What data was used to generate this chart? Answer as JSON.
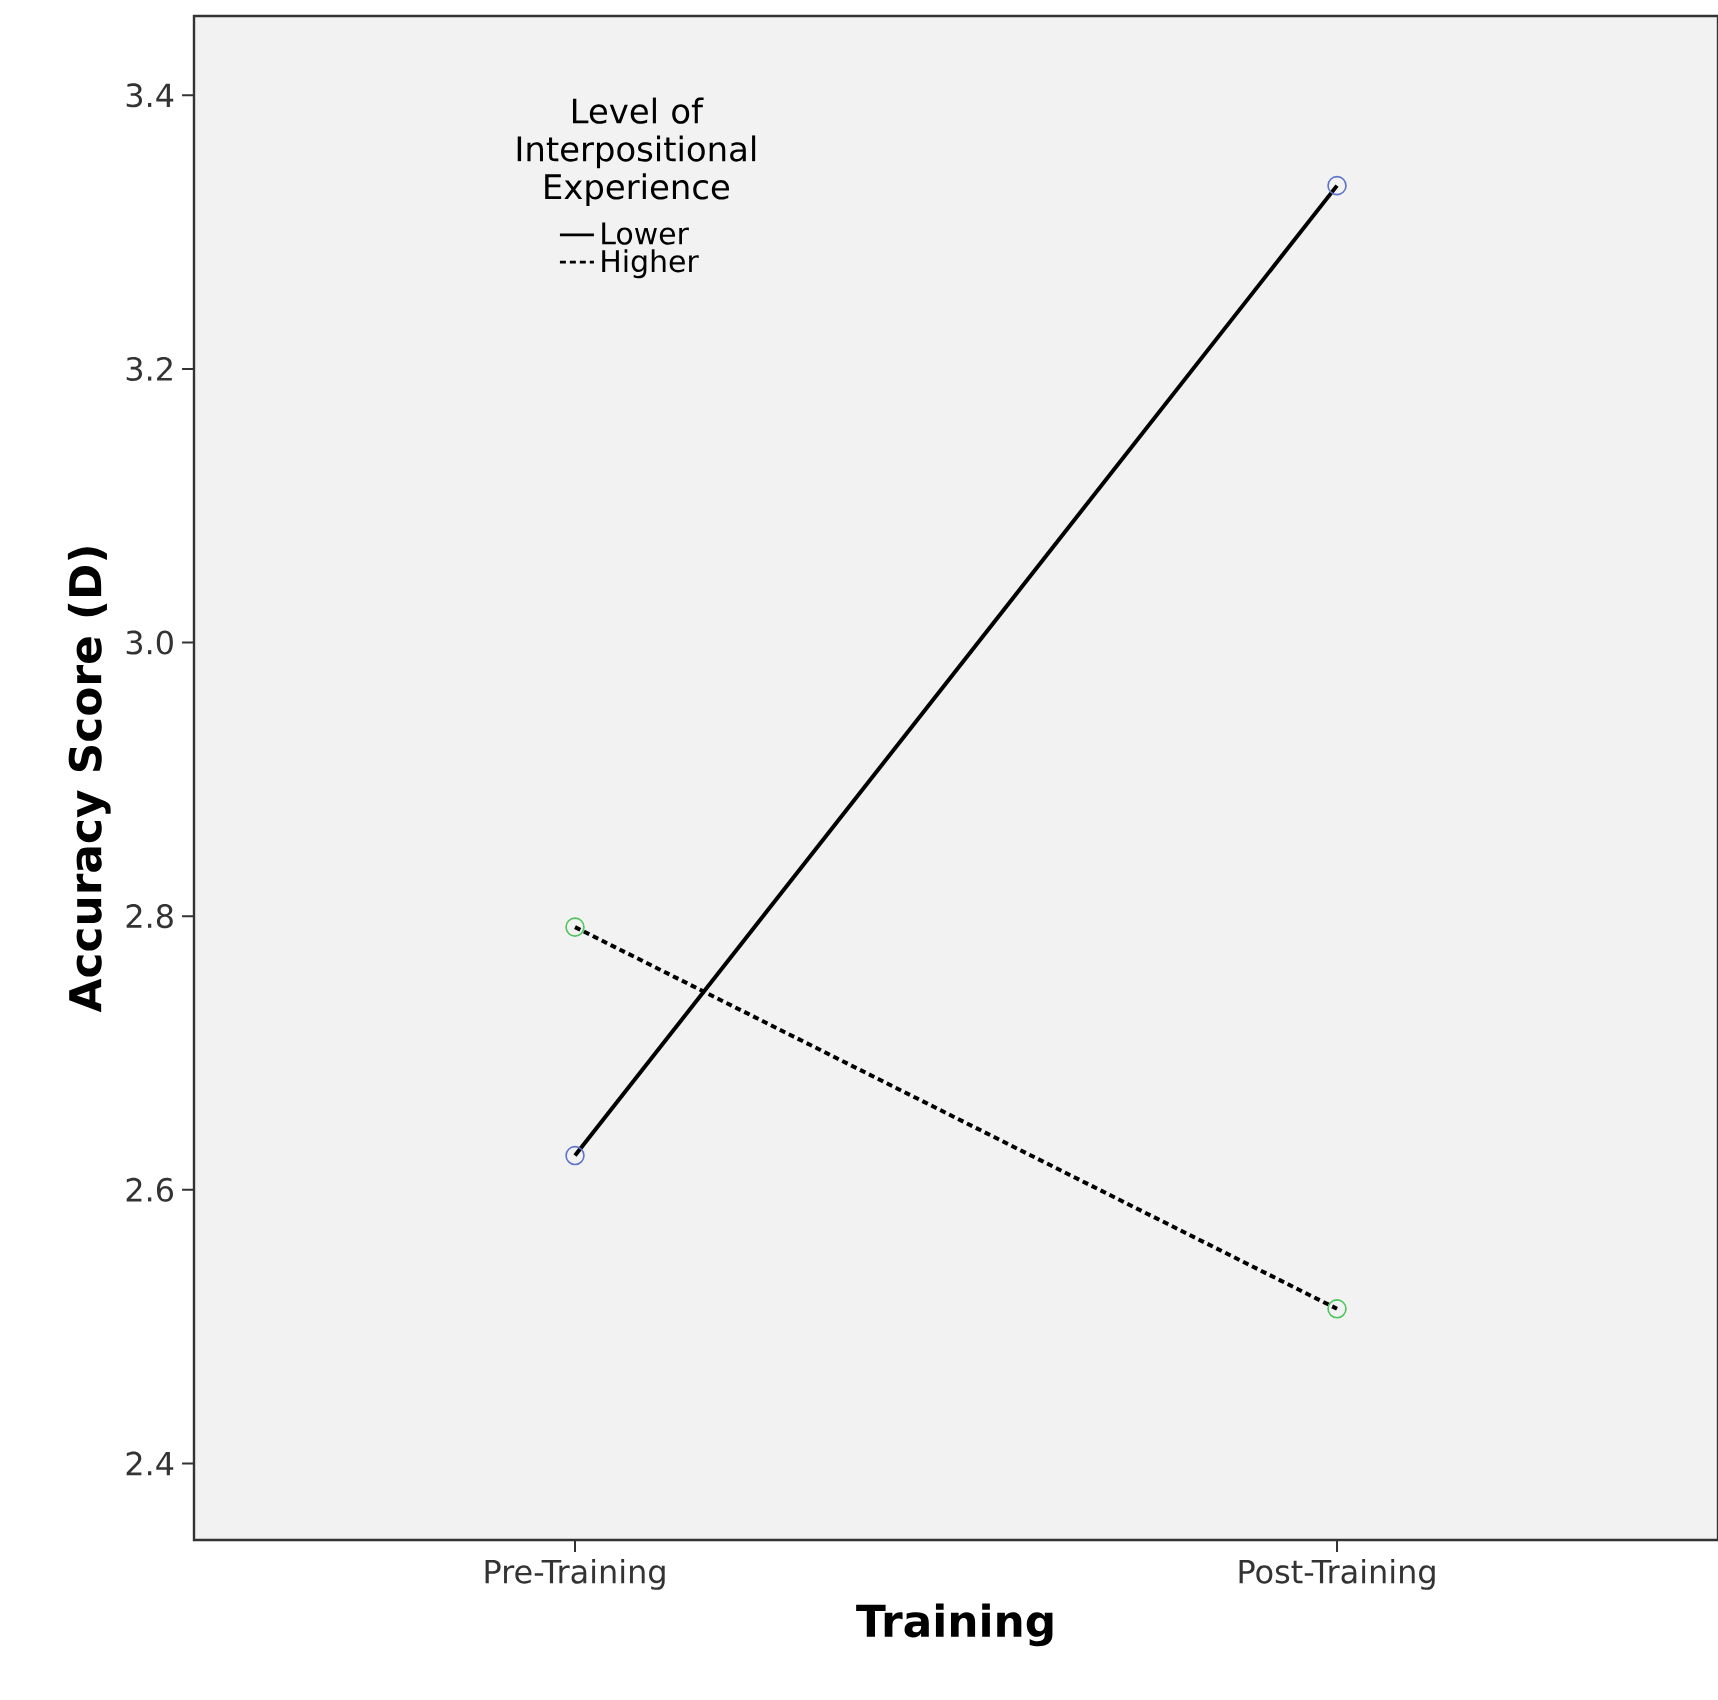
{
  "chart_data": {
    "type": "line",
    "xlabel": "Training",
    "ylabel": "Accuracy Score (D)",
    "legend_title": "Level of Interpositional Experience",
    "categories": [
      "Pre-Training",
      "Post-Training"
    ],
    "series": [
      {
        "name": "Lower",
        "color": "#000000",
        "colors": [
          "#5b73c9",
          "#5b73c9"
        ],
        "values": [
          2.625,
          3.334
        ],
        "line_style": "solid"
      },
      {
        "name": "Higher",
        "color": "#000000",
        "colors": [
          "#4cc45a",
          "#4cc45a"
        ],
        "values": [
          2.792,
          2.513
        ],
        "line_style": "dotted"
      }
    ],
    "ylim": [
      2.344,
      3.458
    ],
    "yticks": [
      2.4,
      2.6,
      2.8,
      {
        "value": 3.0,
        "label": "3.0"
      },
      3.2,
      3.4
    ],
    "marker": "circle",
    "legend": "top left",
    "grid": false
  }
}
